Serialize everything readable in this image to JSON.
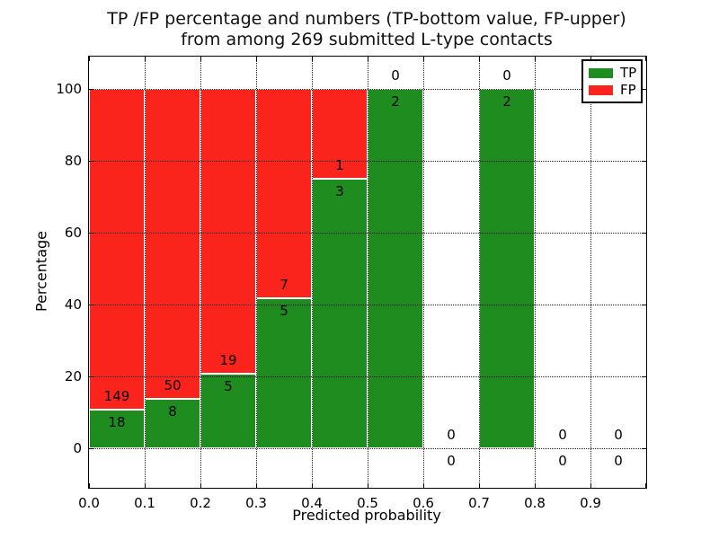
{
  "chart_data": {
    "type": "bar",
    "stacking": "percentage",
    "title_line1": "TP /FP percentage and numbers (TP-bottom value, FP-upper)",
    "title_line2": "from among 269 submitted L-type contacts",
    "xlabel": "Predicted probability",
    "ylabel": "Percentage",
    "x_tick_labels": [
      "0.0",
      "0.1",
      "0.2",
      "0.3",
      "0.4",
      "0.5",
      "0.6",
      "0.7",
      "0.8",
      "0.9"
    ],
    "y_ticks": [
      0,
      20,
      40,
      60,
      80,
      100
    ],
    "ylim": [
      -11,
      109
    ],
    "xlim": [
      0.0,
      1.0
    ],
    "bin_width": 0.1,
    "grid": true,
    "total_contacts": 269,
    "colors": {
      "tp": "#1f8c1f",
      "fp": "#fb241c",
      "edge": "#ffffff"
    },
    "legend": {
      "position": "upper right",
      "items": [
        {
          "label": "TP",
          "color": "#1f8c1f"
        },
        {
          "label": "FP",
          "color": "#fb241c"
        }
      ]
    },
    "bins": [
      {
        "range": [
          0.0,
          0.1
        ],
        "tp": 18,
        "fp": 149
      },
      {
        "range": [
          0.1,
          0.2
        ],
        "tp": 8,
        "fp": 50
      },
      {
        "range": [
          0.2,
          0.3
        ],
        "tp": 5,
        "fp": 19
      },
      {
        "range": [
          0.3,
          0.4
        ],
        "tp": 5,
        "fp": 7
      },
      {
        "range": [
          0.4,
          0.5
        ],
        "tp": 3,
        "fp": 1
      },
      {
        "range": [
          0.5,
          0.6
        ],
        "tp": 2,
        "fp": 0
      },
      {
        "range": [
          0.6,
          0.7
        ],
        "tp": 0,
        "fp": 0
      },
      {
        "range": [
          0.7,
          0.8
        ],
        "tp": 2,
        "fp": 0
      },
      {
        "range": [
          0.8,
          0.9
        ],
        "tp": 0,
        "fp": 0
      },
      {
        "range": [
          0.9,
          1.0
        ],
        "tp": 0,
        "fp": 0
      }
    ]
  }
}
